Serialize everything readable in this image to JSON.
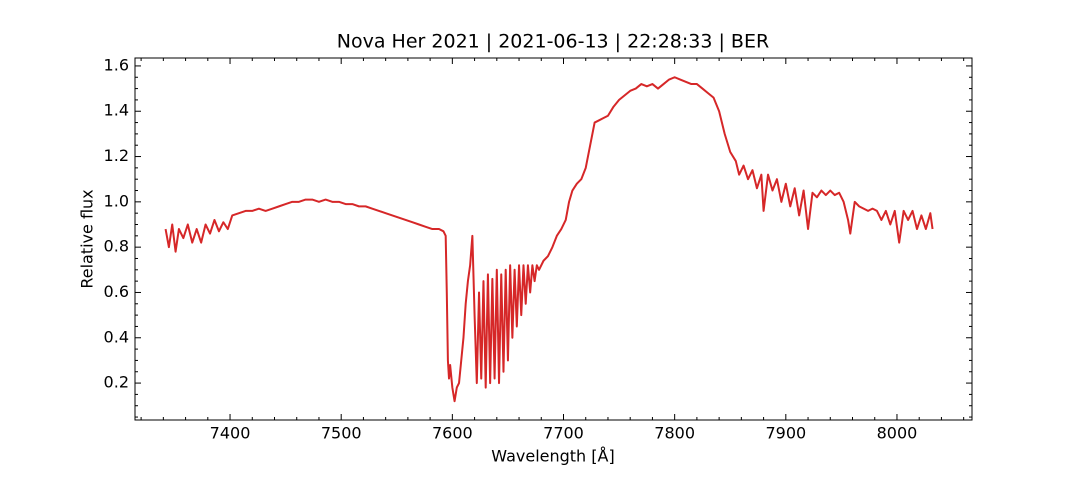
{
  "chart_data": {
    "type": "line",
    "title": "Nova Her 2021 | 2021-06-13 | 22:28:33 | BER",
    "x_label": "Wavelength [Å]",
    "y_label": "Relative flux",
    "xlim": [
      7314.5,
      8067.5
    ],
    "ylim": [
      0.037,
      1.635
    ],
    "xticks": [
      7400,
      7500,
      7600,
      7700,
      7800,
      7900,
      8000
    ],
    "yticks": [
      {
        "value": 0.2,
        "label": "0.2"
      },
      {
        "value": 0.4,
        "label": "0.4"
      },
      {
        "value": 0.6,
        "label": "0.6"
      },
      {
        "value": 0.8,
        "label": "0.8"
      },
      {
        "value": 1.0,
        "label": "1.0"
      },
      {
        "value": 1.2,
        "label": "1.2"
      },
      {
        "value": 1.4,
        "label": "1.4"
      },
      {
        "value": 1.6,
        "label": "1.6"
      }
    ],
    "xminorticks": [
      7320,
      7340,
      7360,
      7380,
      7420,
      7440,
      7460,
      7480,
      7520,
      7540,
      7560,
      7580,
      7620,
      7640,
      7660,
      7680,
      7720,
      7740,
      7760,
      7780,
      7820,
      7840,
      7860,
      7880,
      7920,
      7940,
      7960,
      7980,
      8020,
      8040,
      8060
    ],
    "yminorticks": [
      0.05,
      0.1,
      0.15,
      0.25,
      0.3,
      0.35,
      0.45,
      0.5,
      0.55,
      0.65,
      0.7,
      0.75,
      0.85,
      0.9,
      0.95,
      1.05,
      1.1,
      1.15,
      1.25,
      1.3,
      1.35,
      1.45,
      1.5,
      1.55
    ],
    "series": [
      {
        "color": "#d62728",
        "x": [
          7342,
          7345,
          7348,
          7351,
          7354,
          7358,
          7362,
          7366,
          7370,
          7374,
          7378,
          7382,
          7386,
          7390,
          7394,
          7398,
          7402,
          7408,
          7414,
          7420,
          7426,
          7432,
          7438,
          7444,
          7450,
          7456,
          7462,
          7468,
          7474,
          7480,
          7486,
          7492,
          7498,
          7504,
          7510,
          7516,
          7522,
          7528,
          7534,
          7540,
          7546,
          7552,
          7558,
          7564,
          7570,
          7576,
          7582,
          7588,
          7592,
          7594,
          7595,
          7596,
          7597,
          7598,
          7600,
          7602,
          7604,
          7606,
          7608,
          7610,
          7612,
          7614,
          7616,
          7618,
          7620,
          7622,
          7624,
          7626,
          7628,
          7630,
          7632,
          7634,
          7636,
          7638,
          7640,
          7642,
          7644,
          7646,
          7648,
          7650,
          7652,
          7654,
          7656,
          7658,
          7660,
          7662,
          7664,
          7666,
          7668,
          7670,
          7672,
          7674,
          7676,
          7678,
          7682,
          7686,
          7690,
          7694,
          7698,
          7702,
          7705,
          7708,
          7712,
          7716,
          7720,
          7724,
          7728,
          7732,
          7736,
          7740,
          7745,
          7750,
          7755,
          7760,
          7765,
          7770,
          7775,
          7780,
          7785,
          7790,
          7795,
          7800,
          7805,
          7810,
          7815,
          7820,
          7825,
          7830,
          7835,
          7840,
          7845,
          7850,
          7855,
          7858,
          7862,
          7866,
          7870,
          7874,
          7878,
          7880,
          7884,
          7888,
          7892,
          7896,
          7900,
          7904,
          7908,
          7912,
          7916,
          7920,
          7924,
          7928,
          7932,
          7936,
          7940,
          7944,
          7948,
          7952,
          7956,
          7958,
          7962,
          7966,
          7970,
          7974,
          7978,
          7982,
          7986,
          7990,
          7994,
          7998,
          8002,
          8006,
          8010,
          8014,
          8018,
          8022,
          8026,
          8030,
          8032
        ],
        "values": [
          0.88,
          0.8,
          0.9,
          0.78,
          0.88,
          0.84,
          0.9,
          0.82,
          0.88,
          0.82,
          0.9,
          0.86,
          0.92,
          0.87,
          0.91,
          0.88,
          0.94,
          0.95,
          0.96,
          0.96,
          0.97,
          0.96,
          0.97,
          0.98,
          0.99,
          1.0,
          1.0,
          1.01,
          1.01,
          1.0,
          1.01,
          1.0,
          1.0,
          0.99,
          0.99,
          0.98,
          0.98,
          0.97,
          0.96,
          0.95,
          0.94,
          0.93,
          0.92,
          0.91,
          0.9,
          0.89,
          0.88,
          0.88,
          0.87,
          0.85,
          0.6,
          0.3,
          0.22,
          0.28,
          0.18,
          0.12,
          0.18,
          0.2,
          0.3,
          0.4,
          0.55,
          0.65,
          0.72,
          0.85,
          0.5,
          0.2,
          0.6,
          0.22,
          0.65,
          0.18,
          0.68,
          0.2,
          0.66,
          0.22,
          0.7,
          0.2,
          0.68,
          0.25,
          0.7,
          0.3,
          0.72,
          0.4,
          0.7,
          0.45,
          0.72,
          0.5,
          0.72,
          0.55,
          0.72,
          0.6,
          0.72,
          0.65,
          0.72,
          0.7,
          0.74,
          0.76,
          0.8,
          0.85,
          0.88,
          0.92,
          1.0,
          1.05,
          1.08,
          1.1,
          1.15,
          1.25,
          1.35,
          1.36,
          1.37,
          1.38,
          1.42,
          1.45,
          1.47,
          1.49,
          1.5,
          1.52,
          1.51,
          1.52,
          1.5,
          1.52,
          1.54,
          1.55,
          1.54,
          1.53,
          1.52,
          1.52,
          1.5,
          1.48,
          1.46,
          1.4,
          1.3,
          1.22,
          1.18,
          1.12,
          1.16,
          1.1,
          1.14,
          1.06,
          1.12,
          0.96,
          1.12,
          1.05,
          1.1,
          1.0,
          1.08,
          0.98,
          1.06,
          0.94,
          1.05,
          0.88,
          1.04,
          1.02,
          1.05,
          1.03,
          1.05,
          1.03,
          1.04,
          1.0,
          0.92,
          0.86,
          1.0,
          0.98,
          0.97,
          0.96,
          0.97,
          0.96,
          0.92,
          0.96,
          0.9,
          0.96,
          0.82,
          0.96,
          0.92,
          0.96,
          0.88,
          0.94,
          0.88,
          0.95,
          0.88
        ]
      }
    ]
  }
}
